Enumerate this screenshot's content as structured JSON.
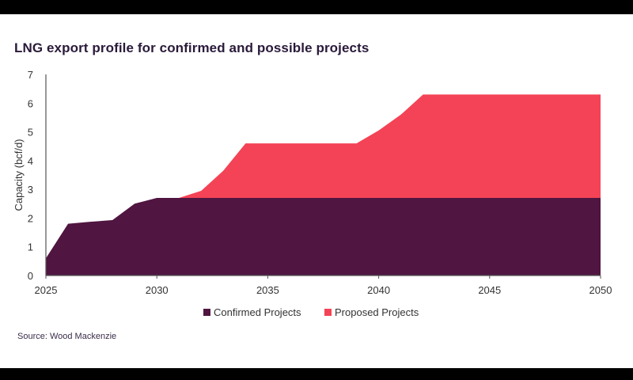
{
  "chart_data": {
    "type": "area",
    "stacked": true,
    "title": "LNG export profile for confirmed and possible projects",
    "xlabel": "",
    "ylabel": "Capacity (bcf/d)",
    "x": [
      2025,
      2026,
      2027,
      2028,
      2029,
      2030,
      2031,
      2032,
      2033,
      2034,
      2035,
      2036,
      2037,
      2038,
      2039,
      2040,
      2041,
      2042,
      2043,
      2044,
      2045,
      2046,
      2047,
      2048,
      2049,
      2050
    ],
    "series": [
      {
        "name": "Confirmed Projects",
        "color": "#501540",
        "values": [
          0.6,
          1.8,
          1.87,
          1.93,
          2.5,
          2.7,
          2.7,
          2.7,
          2.7,
          2.7,
          2.7,
          2.7,
          2.7,
          2.7,
          2.7,
          2.7,
          2.7,
          2.7,
          2.7,
          2.7,
          2.7,
          2.7,
          2.7,
          2.7,
          2.7,
          2.7
        ]
      },
      {
        "name": "Proposed Projects",
        "color": "#f44356",
        "values": [
          0,
          0,
          0,
          0,
          0,
          0,
          0,
          0.25,
          0.95,
          1.9,
          1.9,
          1.9,
          1.9,
          1.9,
          1.9,
          2.35,
          2.9,
          3.6,
          3.6,
          3.6,
          3.6,
          3.6,
          3.6,
          3.6,
          3.6,
          3.6
        ]
      }
    ],
    "xlim": [
      2025,
      2050
    ],
    "ylim": [
      0,
      7
    ],
    "xticks": [
      "2025",
      "2030",
      "2035",
      "2040",
      "2045",
      "2050"
    ],
    "yticks": [
      "0",
      "1",
      "2",
      "3",
      "4",
      "5",
      "6",
      "7"
    ],
    "grid": false,
    "legend_position": "bottom"
  },
  "source": "Source: Wood Mackenzie"
}
